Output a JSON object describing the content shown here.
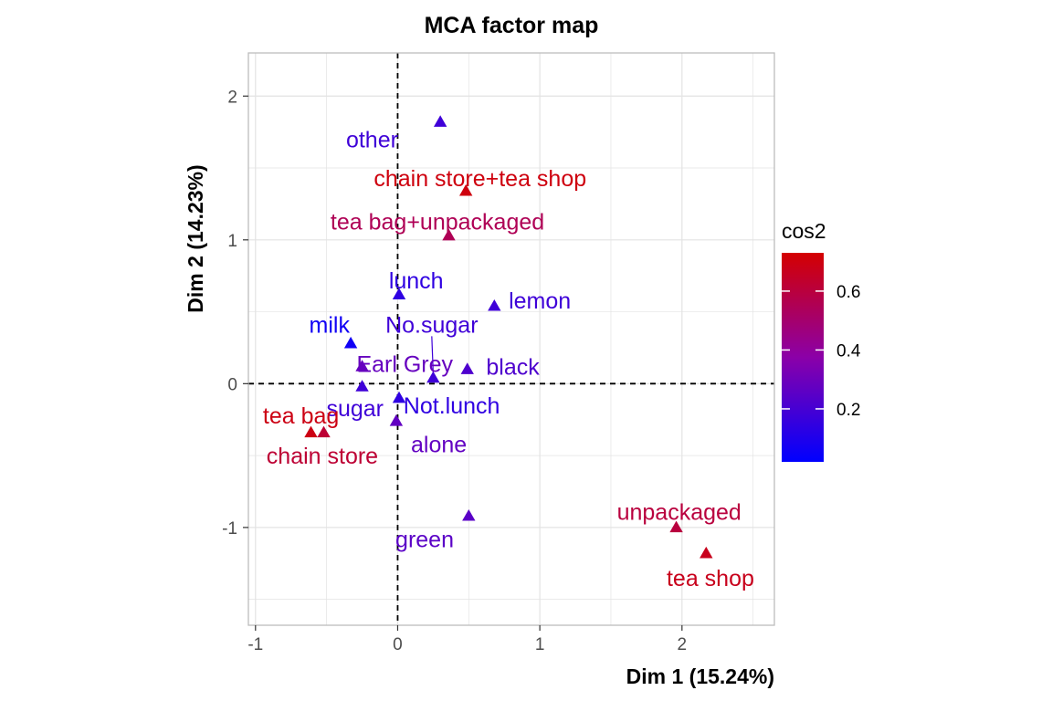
{
  "chart_data": {
    "type": "scatter",
    "title": "MCA factor map",
    "xlabel": "Dim 1 (15.24%)",
    "ylabel": "Dim 2 (14.23%)",
    "xlim": [
      -1.05,
      2.65
    ],
    "ylim": [
      -1.68,
      2.3
    ],
    "xticks": [
      -1,
      0,
      1,
      2
    ],
    "yticks": [
      -1,
      0,
      1,
      2
    ],
    "grid": true,
    "reference_lines": {
      "x": 0,
      "y": 0,
      "style": "dashed"
    },
    "legend": {
      "title": "cos2",
      "position": "right",
      "min": 0.02,
      "max": 0.73,
      "ticks": [
        0.2,
        0.4,
        0.6
      ],
      "tick_labels": [
        "0.2",
        "0.4",
        "0.6"
      ],
      "low_color": "#0000ff",
      "mid_color": "#8b00a8",
      "high_color": "#d40000"
    },
    "points": [
      {
        "label": "other",
        "x": 0.3,
        "y": 1.82,
        "cos2": 0.18,
        "label_x": -0.18,
        "label_y": 1.7
      },
      {
        "label": "chain store+tea shop",
        "x": 0.48,
        "y": 1.34,
        "cos2": 0.7,
        "label_x": 0.58,
        "label_y": 1.43
      },
      {
        "label": "tea bag+unpackaged",
        "x": 0.36,
        "y": 1.03,
        "cos2": 0.55,
        "label_x": 0.28,
        "label_y": 1.13
      },
      {
        "label": "lunch",
        "x": 0.01,
        "y": 0.62,
        "cos2": 0.14,
        "label_x": 0.13,
        "label_y": 0.72
      },
      {
        "label": "lemon",
        "x": 0.68,
        "y": 0.54,
        "cos2": 0.18,
        "label_x": 1.0,
        "label_y": 0.58
      },
      {
        "label": "milk",
        "x": -0.33,
        "y": 0.28,
        "cos2": 0.06,
        "label_x": -0.48,
        "label_y": 0.41
      },
      {
        "label": "No.sugar",
        "x": 0.25,
        "y": 0.04,
        "cos2": 0.18,
        "label_x": 0.24,
        "label_y": 0.41
      },
      {
        "label": "Earl Grey",
        "x": -0.25,
        "y": 0.12,
        "cos2": 0.28,
        "label_x": 0.05,
        "label_y": 0.14
      },
      {
        "label": "black",
        "x": 0.49,
        "y": 0.1,
        "cos2": 0.22,
        "label_x": 0.81,
        "label_y": 0.12
      },
      {
        "label": "sugar",
        "x": -0.25,
        "y": -0.02,
        "cos2": 0.18,
        "label_x": -0.3,
        "label_y": -0.17
      },
      {
        "label": "Not.lunch",
        "x": 0.01,
        "y": -0.1,
        "cos2": 0.14,
        "label_x": 0.38,
        "label_y": -0.15
      },
      {
        "label": "alone",
        "x": -0.01,
        "y": -0.26,
        "cos2": 0.27,
        "label_x": 0.29,
        "label_y": -0.42
      },
      {
        "label": "tea bag",
        "x": -0.61,
        "y": -0.34,
        "cos2": 0.69,
        "label_x": -0.68,
        "label_y": -0.22
      },
      {
        "label": "chain store",
        "x": -0.52,
        "y": -0.34,
        "cos2": 0.62,
        "label_x": -0.53,
        "label_y": -0.5
      },
      {
        "label": "green",
        "x": 0.5,
        "y": -0.92,
        "cos2": 0.25,
        "label_x": 0.19,
        "label_y": -1.08
      },
      {
        "label": "unpackaged",
        "x": 1.96,
        "y": -1.0,
        "cos2": 0.6,
        "label_x": 1.98,
        "label_y": -0.89
      },
      {
        "label": "tea shop",
        "x": 2.17,
        "y": -1.18,
        "cos2": 0.67,
        "label_x": 2.2,
        "label_y": -1.35
      }
    ],
    "connectors": [
      {
        "from_label": "No.sugar",
        "x1": 0.24,
        "y1": 0.33,
        "x2": 0.25,
        "y2": 0.07
      }
    ]
  }
}
